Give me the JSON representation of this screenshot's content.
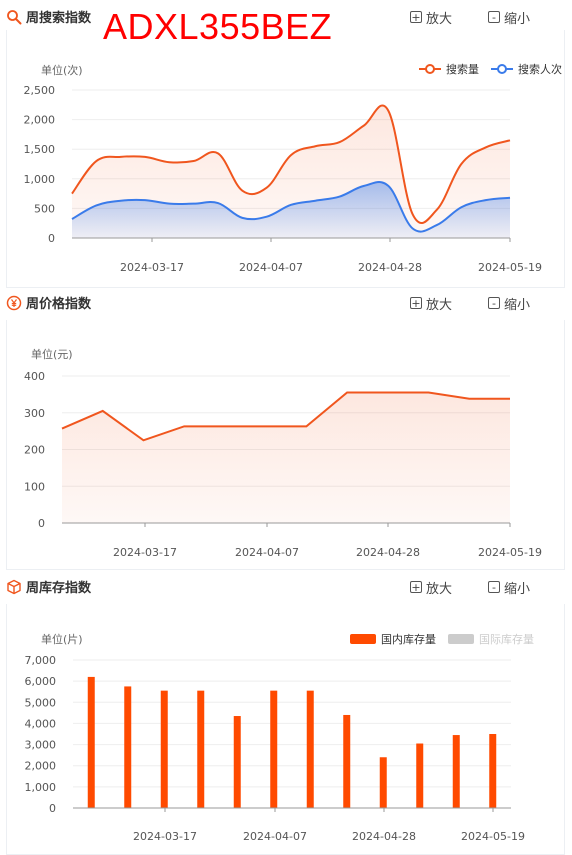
{
  "overlay_text": "ADXL355BEZ",
  "sections": [
    {
      "title": "周搜索指数",
      "icon": "search-icon",
      "zoom_in": "放大",
      "zoom_out": "缩小",
      "unit": "单位(次)"
    },
    {
      "title": "周价格指数",
      "icon": "yuan-icon",
      "zoom_in": "放大",
      "zoom_out": "缩小",
      "unit": "单位(元)"
    },
    {
      "title": "周库存指数",
      "icon": "box-icon",
      "zoom_in": "放大",
      "zoom_out": "缩小",
      "unit": "单位(片)"
    }
  ],
  "colors": {
    "orange": "#f0561e",
    "blue": "#3a7bea",
    "bar": "#ff4a00",
    "disabled": "#cccccc"
  },
  "chart_data": [
    {
      "type": "area",
      "smooth": true,
      "ylim": [
        0,
        2500
      ],
      "yticks": [
        0,
        500,
        1000,
        1500,
        2000,
        2500
      ],
      "ytick_labels": [
        "0",
        "500",
        "1,000",
        "1,500",
        "2,000",
        "2,500"
      ],
      "xtick_labels": [
        "2024-03-17",
        "2024-04-07",
        "2024-04-28",
        "2024-05-19"
      ],
      "legend_position": "top-right",
      "grid": true,
      "series": [
        {
          "name": "搜索量",
          "color": "#f0561e",
          "values": [
            750,
            1300,
            1370,
            1370,
            1280,
            1300,
            1430,
            800,
            850,
            1400,
            1550,
            1620,
            1900,
            2150,
            400,
            480,
            1250,
            1530,
            1650
          ]
        },
        {
          "name": "搜索人次",
          "color": "#3a7bea",
          "values": [
            320,
            550,
            630,
            640,
            580,
            580,
            590,
            340,
            360,
            560,
            630,
            700,
            880,
            880,
            160,
            220,
            520,
            640,
            680
          ]
        }
      ]
    },
    {
      "type": "line",
      "ylim": [
        0,
        400
      ],
      "yticks": [
        0,
        100,
        200,
        300,
        400
      ],
      "ytick_labels": [
        "0",
        "100",
        "200",
        "300",
        "400"
      ],
      "xtick_labels": [
        "2024-03-17",
        "2024-04-07",
        "2024-04-28",
        "2024-05-19"
      ],
      "grid": true,
      "series": [
        {
          "color": "#f0561e",
          "values": [
            257,
            305,
            225,
            263,
            263,
            263,
            263,
            355,
            355,
            355,
            338,
            338
          ]
        }
      ]
    },
    {
      "type": "bar",
      "ylim": [
        0,
        7000
      ],
      "yticks": [
        0,
        1000,
        2000,
        3000,
        4000,
        5000,
        6000,
        7000
      ],
      "ytick_labels": [
        "0",
        "1,000",
        "2,000",
        "3,000",
        "4,000",
        "5,000",
        "6,000",
        "7,000"
      ],
      "xtick_labels": [
        "2024-03-17",
        "2024-04-07",
        "2024-04-28",
        "2024-05-19"
      ],
      "legend_position": "top-right",
      "grid": true,
      "series": [
        {
          "name": "国内库存量",
          "color": "#ff4a00",
          "values": [
            6200,
            5750,
            5550,
            5550,
            4350,
            5550,
            5550,
            4400,
            2400,
            3050,
            3450,
            3500
          ]
        },
        {
          "name": "国际库存量",
          "color": "#cccccc",
          "values": [],
          "disabled": true
        }
      ]
    }
  ]
}
